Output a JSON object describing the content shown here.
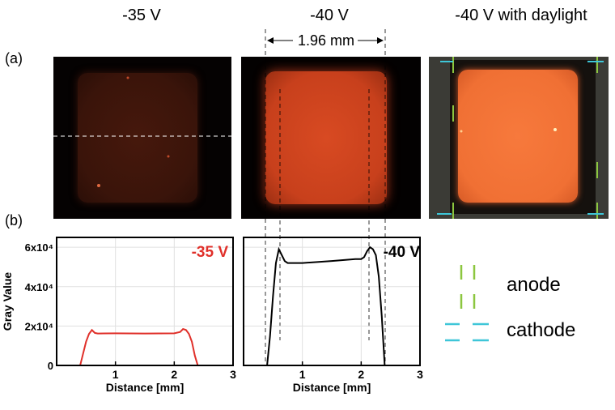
{
  "figure": {
    "titles": [
      "-35 V",
      "-40 V",
      "-40 V with daylight"
    ],
    "panel_a": "(a)",
    "panel_b": "(b)",
    "dimension_label": "1.96 mm",
    "legend": {
      "anode": "anode",
      "cathode": "cathode",
      "anode_color": "#8cc63f",
      "cathode_color": "#3ec6d8"
    },
    "photo_colors": {
      "dim": "#3a130a",
      "bright": "#d0461f",
      "daylight": "#f4743a"
    }
  },
  "chart_data": [
    {
      "type": "line",
      "series": [
        {
          "name": "-35 V",
          "color": "#e0302a",
          "x": [
            0,
            0.4,
            0.45,
            0.5,
            0.55,
            0.6,
            0.65,
            0.7,
            1.0,
            1.5,
            2.0,
            2.1,
            2.15,
            2.2,
            2.25,
            2.3,
            2.35,
            2.4,
            3
          ],
          "y": [
            0,
            0,
            0.6,
            1.2,
            1.6,
            1.8,
            1.65,
            1.62,
            1.63,
            1.62,
            1.63,
            1.7,
            1.85,
            1.8,
            1.6,
            1.2,
            0.5,
            0,
            0
          ]
        }
      ],
      "xlabel": "Distance [mm]",
      "ylabel": "Gray Value",
      "xlim": [
        0,
        3
      ],
      "ylim": [
        0,
        6.5
      ],
      "xticks": [
        "1",
        "2",
        "3"
      ],
      "yticks": [
        "0",
        "2x10⁴",
        "4x10⁴",
        "6x10⁴"
      ],
      "annotation": "-35 V",
      "grid": true
    },
    {
      "type": "line",
      "series": [
        {
          "name": "-40 V",
          "color": "#000000",
          "x": [
            0,
            0.4,
            0.45,
            0.5,
            0.55,
            0.6,
            0.65,
            0.7,
            0.75,
            1.0,
            1.5,
            1.9,
            2.0,
            2.05,
            2.1,
            2.15,
            2.2,
            2.25,
            2.3,
            2.35,
            2.4,
            3
          ],
          "y": [
            0,
            0,
            1.5,
            3.5,
            5.2,
            5.9,
            5.6,
            5.3,
            5.2,
            5.2,
            5.3,
            5.4,
            5.4,
            5.5,
            5.8,
            6.0,
            5.9,
            5.6,
            4.5,
            2.5,
            0,
            0
          ]
        }
      ],
      "xlabel": "Distance [mm]",
      "xlim": [
        0,
        3
      ],
      "ylim": [
        0,
        6.5
      ],
      "xticks": [
        "1",
        "2",
        "3"
      ],
      "annotation": "-40 V",
      "grid": true
    }
  ]
}
